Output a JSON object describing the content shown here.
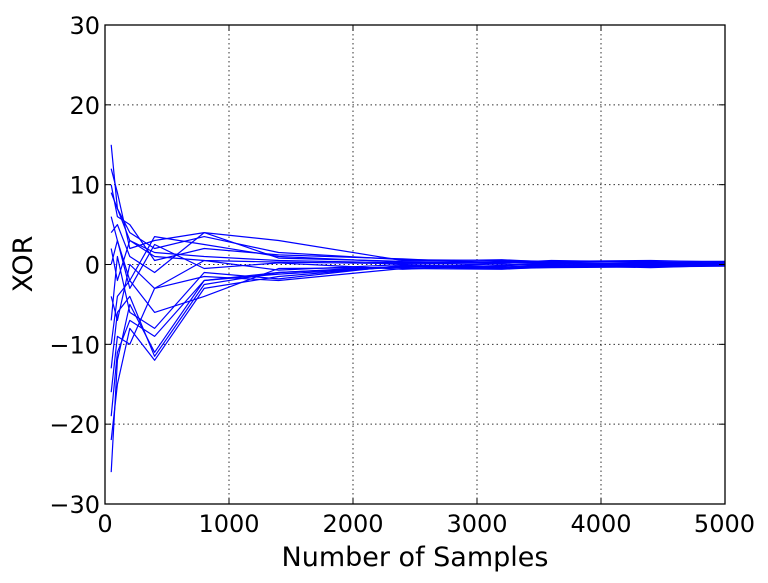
{
  "chart_data": {
    "type": "line",
    "title": "",
    "xlabel": "Number of Samples",
    "ylabel": "XOR",
    "xlim": [
      0,
      5000
    ],
    "ylim": [
      -30,
      30
    ],
    "xticks": [
      0,
      1000,
      2000,
      3000,
      4000,
      5000
    ],
    "yticks": [
      -30,
      -20,
      -10,
      0,
      10,
      20,
      30
    ],
    "xtick_labels": [
      "0",
      "1000",
      "2000",
      "3000",
      "4000",
      "5000"
    ],
    "ytick_labels": [
      "−30",
      "−20",
      "−10",
      "0",
      "10",
      "20",
      "30"
    ],
    "grid": true,
    "color": "#0000ff",
    "x": [
      50,
      100,
      200,
      400,
      800,
      1400,
      2400,
      3200,
      3600,
      4400,
      5000
    ],
    "series": [
      {
        "values": [
          15,
          7,
          3,
          1,
          0.5,
          0.3,
          0.1,
          0.05,
          0.03,
          0.02,
          0.0
        ]
      },
      {
        "values": [
          -26,
          -12,
          -5,
          -11,
          -2,
          -1,
          -0.3,
          -0.5,
          -0.3,
          -0.2,
          -0.1
        ]
      },
      {
        "values": [
          12,
          9,
          2,
          3,
          4,
          3,
          0.5,
          0.3,
          0.2,
          0.1,
          0.1
        ]
      },
      {
        "values": [
          -22,
          -15,
          -8,
          -12,
          -3,
          -1.5,
          -0.2,
          -0.4,
          -0.2,
          -0.1,
          0.0
        ]
      },
      {
        "values": [
          9,
          7,
          4,
          2,
          3.5,
          1.5,
          0.6,
          0.5,
          0.4,
          0.5,
          0.3
        ]
      },
      {
        "values": [
          -16,
          -9,
          -10,
          -3,
          -1.5,
          -2,
          -0.5,
          -0.6,
          -0.3,
          -0.3,
          -0.2
        ]
      },
      {
        "values": [
          6,
          3,
          -2,
          3.5,
          2.5,
          1,
          0.3,
          0.2,
          0.5,
          0.3,
          0.2
        ]
      },
      {
        "values": [
          -13,
          -6,
          -4,
          -11.5,
          -2.5,
          -1,
          -0.2,
          -0.3,
          -0.1,
          -0.4,
          -0.1
        ]
      },
      {
        "values": [
          4,
          5,
          1,
          -1,
          4,
          0.8,
          0.4,
          0.6,
          0.3,
          0.4,
          0.4
        ]
      },
      {
        "values": [
          -10,
          -4,
          -2,
          -6,
          -4,
          -0.5,
          -0.4,
          0.1,
          -0.2,
          -0.2,
          0.0
        ]
      },
      {
        "values": [
          2,
          -2,
          3,
          1.5,
          1,
          0.5,
          0.2,
          0.3,
          0.1,
          0.2,
          0.1
        ]
      },
      {
        "values": [
          -7,
          1,
          -6,
          -8,
          -1,
          -1.8,
          -0.1,
          -0.2,
          0.2,
          0.1,
          -0.1
        ]
      },
      {
        "values": [
          10,
          6,
          5,
          0.5,
          2,
          1.2,
          0.7,
          0.1,
          -0.1,
          0.0,
          0.2
        ]
      },
      {
        "values": [
          -4,
          -7,
          0,
          -3,
          0.5,
          -0.7,
          0.0,
          0.4,
          0.3,
          -0.1,
          0.1
        ]
      },
      {
        "values": [
          0,
          3,
          -3,
          2.5,
          -0.5,
          0.2,
          -0.6,
          -0.1,
          0.0,
          0.3,
          0.0
        ]
      },
      {
        "values": [
          -19,
          -11,
          -7,
          -9,
          -2,
          -1.2,
          -0.3,
          -0.5,
          -0.4,
          -0.3,
          -0.1
        ]
      }
    ]
  }
}
